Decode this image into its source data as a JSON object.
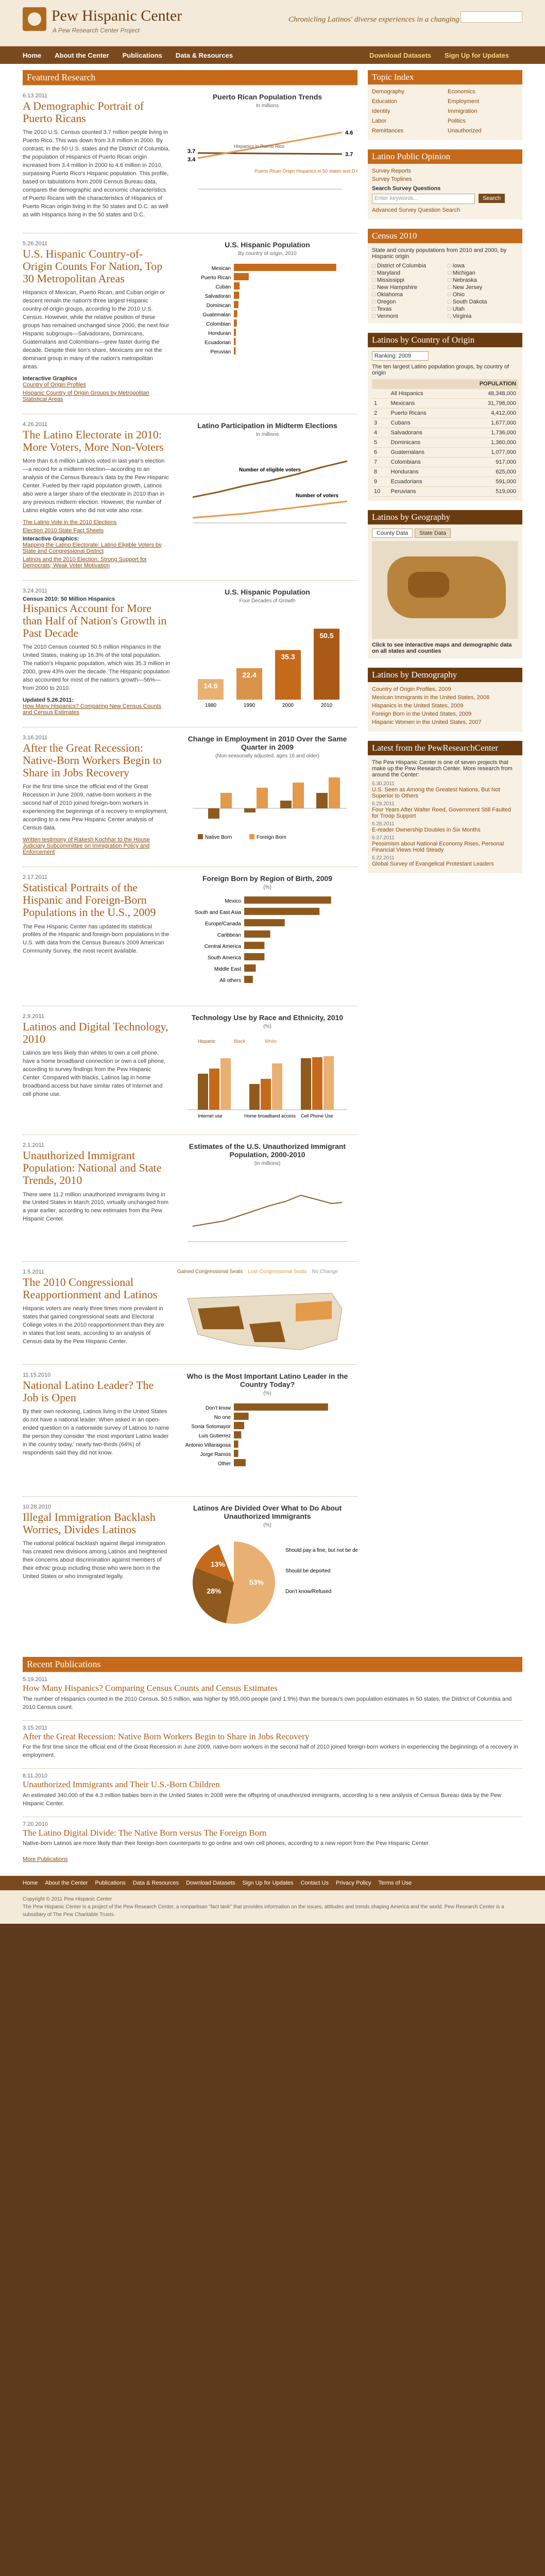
{
  "header": {
    "title": "Pew Hispanic Center",
    "subtitle": "A Pew Research Center Project",
    "tagline": "Chronicling Latinos' diverse experiences in a changing America"
  },
  "nav": [
    "Home",
    "About the Center",
    "Publications",
    "Data & Resources",
    "Download Datasets",
    "Sign Up for Updates"
  ],
  "featured": {
    "section_title": "Featured Research",
    "articles": [
      {
        "date": "6.13.2011",
        "headline": "A Demographic Portrait of Puerto Ricans",
        "body": "The 2010 U.S. Census counted 3.7 million people living in Puerto Rico. This was down from 3.8 million in 2000. By contrast, in the 50 U.S. states and the District of Columbia, the population of Hispanics of Puerto Rican origin increased from 3.4 million in 2000 to 4.6 million in 2010, surpassing Puerto Rico's Hispanic population. This profile, based on tabulations from 2009 Census Bureau data, compares the demographic and economic characteristics of Puerto Ricans with the characteristics of Hispanics of Puerto Rican origin living in the 50 states and D.C. as well as with Hispanics living in the 50 states and D.C.",
        "fig_title": "Puerto Rican Population Trends",
        "fig_sub": "In millions",
        "series_a": "Hispanics in Puerto Rico",
        "series_b": "Puerto Rican Origin Hispanics in 50 states and D.C.",
        "val_a_start": "3.7",
        "val_b_start": "3.4",
        "val_a_end": "3.7",
        "val_b_end": "4.6"
      },
      {
        "date": "5.26.2011",
        "headline": "U.S. Hispanic Country-of-Origin Counts For Nation, Top 30 Metropolitan Areas",
        "body": "Hispanics of Mexican, Puerto Rican, and Cuban origin or descent remain the nation's three largest Hispanic country-of-origin groups, according to the 2010 U.S. Census. However, while the relative position of these groups has remained unchanged since 2000, the next four Hispanic subgroups—Salvadorans, Dominicans, Guatemalans and Colombians—grew faster during the decade. Despite their lion's share, Mexicans are not the dominant group in many of the nation's metropolitan areas.",
        "link_label": "Interactive Graphics",
        "links": [
          "Country of Origin Profiles",
          "Hispanic Country of Origin Groups by Metropolitan Statistical Areas"
        ],
        "fig_title": "U.S. Hispanic Population",
        "fig_sub": "By country of origin, 2010",
        "bars": [
          {
            "label": "Mexican",
            "value": 31798258
          },
          {
            "label": "Puerto Rican",
            "value": 4623716
          },
          {
            "label": "Cuban",
            "value": 1785547
          },
          {
            "label": "Salvadoran",
            "value": 1648968
          },
          {
            "label": "Dominican",
            "value": 1414703
          },
          {
            "label": "Guatemalan",
            "value": 1044209
          },
          {
            "label": "Colombian",
            "value": 908734
          },
          {
            "label": "Honduran",
            "value": 633401
          },
          {
            "label": "Ecuadorian",
            "value": 564631
          },
          {
            "label": "Peruvian",
            "value": 531358
          }
        ]
      },
      {
        "date": "4.26.2011",
        "headline": "The Latino Electorate in 2010: More Voters, More Non-Voters",
        "body": "More than 6.6 million Latinos voted in last year's election—a record for a midterm election—according to an analysis of the Census Bureau's data by the Pew Hispanic Center. Fueled by their rapid population growth, Latinos also were a larger share of the electorate in 2010 than in any previous midterm election. However, the number of Latino eligible voters who did not vote also rose.",
        "links": [
          "The Latino Vote in the 2010 Elections",
          "Election 2010 State Fact Sheets"
        ],
        "link_label": "Interactive Graphics:",
        "links2": [
          "Mapping the Latino Electorate: Latino Eligible Voters by State and Congressional District",
          "Latinos and the 2010 Election: Strong Support for Democrats; Weak Voter Motivation"
        ],
        "fig_title": "Latino Participation in Midterm Elections",
        "fig_sub": "In millions",
        "series_a": "Number of eligible voters",
        "series_b": "Number of voters"
      },
      {
        "date": "3.24.2011",
        "headline": "Hispanics Account for More than Half of Nation's Growth in Past Decade",
        "kicker": "Census 2010: 50 Million Hispanics",
        "body": "The 2010 Census counted 50.5 million Hispanics in the United States, making up 16.3% of the total population. The nation's Hispanic population, which was 35.3 million in 2000, grew 43% over the decade. The Hispanic population also accounted for most of the nation's growth—56%—from 2000 to 2010.",
        "update": "Updated 5.26.2011:",
        "links": [
          "How Many Hispanics? Comparing New Census Counts and Census Estimates"
        ],
        "fig_title": "U.S. Hispanic Population",
        "fig_sub": "Four Decades of Growth",
        "chart_values": [
          14.6,
          22.4,
          35.3,
          50.5
        ],
        "chart_years": [
          "1980",
          "1990",
          "2000",
          "2010"
        ]
      },
      {
        "date": "3.16.2011",
        "headline": "After the Great Recession: Native-Born Workers Begin to Share in Jobs Recovery",
        "body": "For the first time since the official end of the Great Recession in June 2009, native-born workers in the second half of 2010 joined foreign-born workers in experiencing the beginnings of a recovery in employment, according to a new Pew Hispanic Center analysis of Census data.",
        "links": [
          "Written testimony of Rakesh Kochhar to the House Judiciary Subcommittee on Immigration Policy and Enforcement"
        ],
        "fig_title": "Change in Employment in 2010 Over the Same Quarter in 2009",
        "fig_sub": "(Non-seasonally adjusted, ages 16 and older)",
        "legend": [
          "Native Born",
          "Foreign Born"
        ]
      },
      {
        "date": "2.17.2011",
        "headline": "Statistical Portraits of the Hispanic and Foreign-Born Populations in the U.S., 2009",
        "body": "The Pew Hispanic Center has updated its statistical profiles of the Hispanic and foreign-born populations in the U.S. with data from the Census Bureau's 2009 American Community Survey, the most recent available.",
        "fig_title": "Foreign Born by Region of Birth, 2009",
        "fig_sub": "(%)",
        "regions": [
          "Mexico",
          "South and East Asia",
          "Europe/Canada",
          "Caribbean",
          "Central America",
          "South America",
          "Middle East",
          "All others"
        ]
      },
      {
        "date": "2.9.2011",
        "headline": "Latinos and Digital Technology, 2010",
        "body": "Latinos are less likely than whites to own a cell phone, have a home broadband connection or own a cell phone, according to survey findings from the Pew Hispanic Center. Compared with blacks, Latinos lag in home broadband access but have similar rates of Internet and cell phone use.",
        "fig_title": "Technology Use by Race and Ethnicity, 2010",
        "fig_sub": "(%)",
        "groups": [
          "Internet use",
          "Home broadband access",
          "Cell Phone Use"
        ],
        "legend": [
          "Hispanic",
          "Black",
          "White"
        ]
      },
      {
        "date": "2.1.2011",
        "headline": "Unauthorized Immigrant Population: National and State Trends, 2010",
        "body": "There were 11.2 million unauthorized immigrants living in the United States in March 2010, virtually unchanged from a year earlier, according to new estimates from the Pew Hispanic Center.",
        "fig_title": "Estimates of the U.S. Unauthorized Immigrant Population, 2000-2010",
        "fig_sub": "(in millions)"
      },
      {
        "date": "1.5.2011",
        "headline": "The 2010 Congressional Reapportionment and Latinos",
        "body": "Hispanic voters are nearly three times more prevalent in states that gained congressional seats and Electoral College votes in the 2010 reapportionment than they are in states that lost seats, according to an analysis of Census data by the Pew Hispanic Center.",
        "legend": [
          "Gained Congressional Seats",
          "Lost Congressional Seats",
          "No Change"
        ]
      },
      {
        "date": "11.15.2010",
        "headline": "National Latino Leader? The Job is Open",
        "body": "By their own reckoning, Latinos living in the United States do not have a national leader. When asked in an open-ended question on a nationwide survey of Latinos to name the person they consider 'the most important Latino leader in the country today,' nearly two-thirds (64%) of respondents said they did not know.",
        "fig_title": "Who is the Most Important Latino Leader in the Country Today?",
        "fig_sub": "(%)",
        "bars": [
          {
            "label": "Don't know",
            "value": 64
          },
          {
            "label": "No one",
            "value": 10
          },
          {
            "label": "Sonia Sotomayor",
            "value": 7
          },
          {
            "label": "Luis Gutierrez",
            "value": 5
          },
          {
            "label": "Antonio Villaraigosa",
            "value": 3
          },
          {
            "label": "Jorge Ramos",
            "value": 3
          },
          {
            "label": "Other",
            "value": 8
          }
        ]
      },
      {
        "date": "10.28.2010",
        "headline": "Illegal Immigration Backlash Worries, Divides Latinos",
        "body": "The national political backlash against illegal immigration has created new divisions among Latinos and heightened their concerns about discrimination against members of their ethnic group including those who were born in the United States or who immigrated legally.",
        "fig_title": "Latinos Are Divided Over What to Do About Unauthorized Immigrants",
        "fig_sub": "(%)",
        "pie": [
          {
            "label": "Should pay a fine, but not be deported",
            "value": 53
          },
          {
            "label": "Should be deported",
            "value": 28
          },
          {
            "label": "Don't know/Refused",
            "value": 13
          }
        ]
      }
    ]
  },
  "sidebar": {
    "topic_index": {
      "title": "Topic Index",
      "items": [
        "Demography",
        "Economics",
        "Education",
        "Employment",
        "Identity",
        "Immigration",
        "Labor",
        "Politics",
        "Remittances",
        "Unauthorized"
      ]
    },
    "public_opinion": {
      "title": "Latino Public Opinion",
      "links": [
        "Survey Reports",
        "Survey Toplines"
      ],
      "search_title": "Search Survey Questions",
      "placeholder": "Enter keywords...",
      "button": "Search",
      "advanced": "Advanced Survey Question Search"
    },
    "census": {
      "title": "Census 2010",
      "body": "State and county populations from 2010 and 2000, by Hispanic origin",
      "states": [
        "District of Columbia",
        "Iowa",
        "Maryland",
        "Michigan",
        "Mississippi",
        "Nebraska",
        "New Hampshire",
        "New Jersey",
        "Oklahoma",
        "Ohio",
        "Oregon",
        "South Dakota",
        "Texas",
        "Utah",
        "Vermont",
        "Virginia"
      ]
    },
    "country": {
      "title": "Latinos by Country of Origin",
      "ranking": "Ranking: 2009",
      "body": "The ten largest Latino population groups, by country of origin",
      "header": [
        "",
        "POPULATION"
      ],
      "rows": [
        {
          "rank": "",
          "name": "All Hispanics",
          "value": "48,348,000"
        },
        {
          "rank": "1",
          "name": "Mexicans",
          "value": "31,798,000"
        },
        {
          "rank": "2",
          "name": "Puerto Ricans",
          "value": "4,412,000"
        },
        {
          "rank": "3",
          "name": "Cubans",
          "value": "1,677,000"
        },
        {
          "rank": "4",
          "name": "Salvadorans",
          "value": "1,736,000"
        },
        {
          "rank": "5",
          "name": "Dominicans",
          "value": "1,360,000"
        },
        {
          "rank": "6",
          "name": "Guatemalans",
          "value": "1,077,000"
        },
        {
          "rank": "7",
          "name": "Colombians",
          "value": "917,000"
        },
        {
          "rank": "8",
          "name": "Hondurans",
          "value": "625,000"
        },
        {
          "rank": "9",
          "name": "Ecuadorians",
          "value": "591,000"
        },
        {
          "rank": "10",
          "name": "Peruvians",
          "value": "519,000"
        }
      ]
    },
    "geography": {
      "title": "Latinos by Geography",
      "tabs": [
        "County Data",
        "State Data"
      ],
      "caption": "Click to see interactive maps and demographic data on all states and counties"
    },
    "demography": {
      "title": "Latinos by Demography",
      "links": [
        "Country of Origin Profiles, 2009",
        "Mexican Immigrants in the United States, 2008",
        "Hispanics in the United States, 2009",
        "Foreign Born in the United States, 2009",
        "Hispanic Women in the United States, 2007"
      ]
    },
    "pew": {
      "title": "Latest from the PewResearchCenter",
      "body": "The Pew Hispanic Center is one of seven projects that make up the Pew Research Center. More research from around the Center:",
      "items": [
        {
          "date": "6.30.2011",
          "text": "U.S. Seen as Among the Greatest Nations, But Not Superior to Others"
        },
        {
          "date": "6.29.2011",
          "text": "Four Years After Walter Reed, Government Still Faulted for Troop Support"
        },
        {
          "date": "6.28.2011",
          "text": "E-reader Ownership Doubles in Six Months"
        },
        {
          "date": "6.27.2011",
          "text": "Pessimism about National Economy Rises, Personal Financial Views Hold Steady"
        },
        {
          "date": "6.22.2011",
          "text": "Global Survey of Evangelical Protestant Leaders"
        }
      ]
    }
  },
  "recent": {
    "title": "Recent Publications",
    "items": [
      {
        "date": "5.19.2011",
        "headline": "How Many Hispanics? Comparing Census Counts and Census Estimates",
        "body": "The number of Hispanics counted in the 2010 Census, 50.5 million, was higher by 955,000 people (and 1.9%) than the bureau's own population estimates in 50 states, the District of Columbia and 2010 Census count."
      },
      {
        "date": "3.15.2011",
        "headline": "After the Great Recession: Native Born Workers Begin to Share in Jobs Recovery",
        "body": "For the first time since the official end of the Great Recession in June 2009, native-born workers in the second half of 2010 joined foreign-born workers in experiencing the beginnings of a recovery in employment."
      },
      {
        "date": "8.11.2010",
        "headline": "Unauthorized Immigrants and Their U.S.-Born Children",
        "body": "An estimated 340,000 of the 4.3 million babies born in the United States in 2008 were the offspring of unauthorized immigrants, according to a new analysis of Census Bureau data by the Pew Hispanic Center."
      },
      {
        "date": "7.20.2010",
        "headline": "The Latino Digital Divide: The Native Born versus The Foreign Born",
        "body": "Native-born Latinos are more likely than their foreign-born counterparts to go online and own cell phones, according to a new report from the Pew Hispanic Center."
      }
    ],
    "more": "More Publications"
  },
  "footer": {
    "links": [
      "Home",
      "About the Center",
      "Publications",
      "Data & Resources",
      "Download Datasets",
      "Sign Up for Updates",
      "Contact Us",
      "Privacy Policy",
      "Terms of Use"
    ],
    "copyright": "Copyright © 2011 Pew Hispanic Center",
    "about": "The Pew Hispanic Center is a project of the Pew Research Center, a nonpartisan \"fact tank\" that provides information on the issues, attitudes and trends shaping America and the world. Pew Research Center is a subsidiary of The Pew Charitable Trusts."
  }
}
